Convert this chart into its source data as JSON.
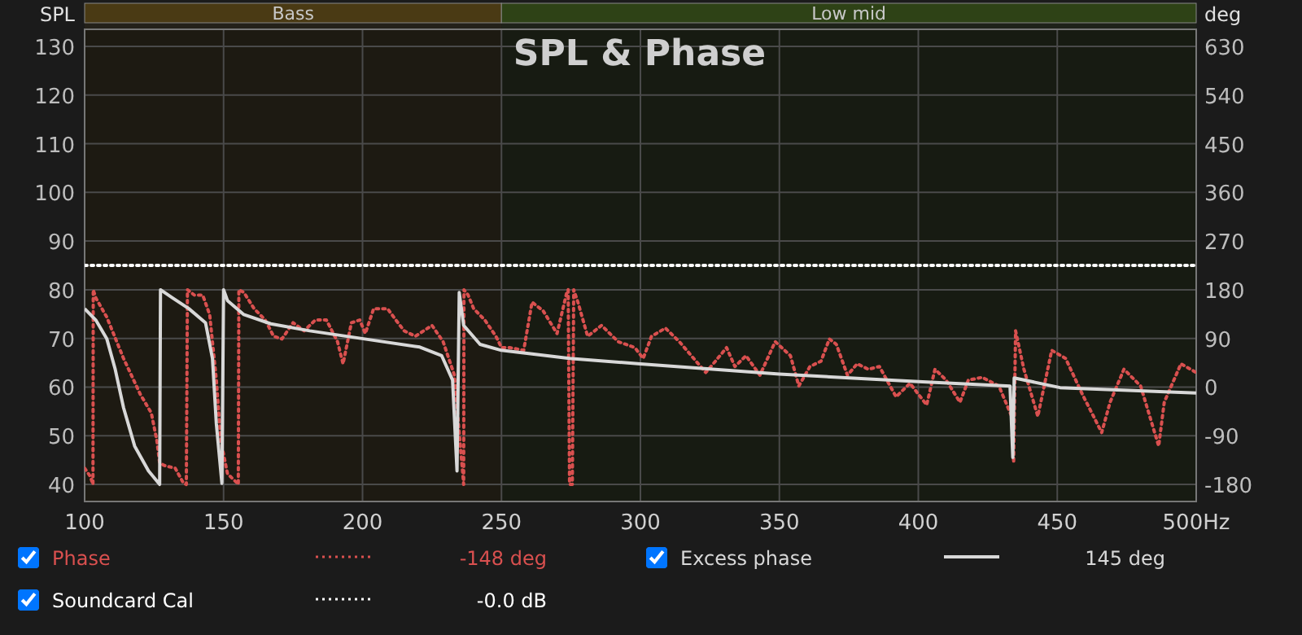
{
  "chart_data": {
    "type": "line",
    "title": "SPL & Phase",
    "ylabel": "SPL",
    "y2label": "deg",
    "xlim": [
      100,
      500
    ],
    "xticks": [
      100,
      150,
      200,
      250,
      300,
      350,
      400,
      450,
      {
        "value": 500,
        "label": "500Hz"
      }
    ],
    "ylim": [
      36.5,
      133.5
    ],
    "yticks": [
      40,
      50,
      60,
      70,
      80,
      90,
      100,
      110,
      120,
      130
    ],
    "y2lim": [
      -211.5,
      661.5
    ],
    "y2ticks": [
      -180,
      -90,
      0,
      90,
      180,
      270,
      360,
      450,
      540,
      630
    ],
    "grid": true,
    "legend": "bottom",
    "bands": [
      {
        "axis": "x",
        "from": 100,
        "to": 250,
        "label": "Bass",
        "color": "#4a3a14"
      },
      {
        "axis": "x",
        "from": 250,
        "to": 500,
        "label": "Low mid",
        "color": "#2e4216"
      }
    ],
    "annotations": [
      "-148 deg",
      "145 deg",
      "-0.0 dB"
    ],
    "series": [
      {
        "name": "Phase",
        "color": "#d9504f",
        "axis": "y2",
        "line_style": "dotted",
        "x": [
          100,
          102,
          103,
          103.1,
          104,
          108,
          114,
          120,
          124,
          126,
          127,
          128.7,
          132.6,
          135.6,
          136.6,
          137,
          139.5,
          142.5,
          145,
          147.4,
          149,
          151.4,
          155,
          155.3,
          155.5,
          157.3,
          161,
          165,
          168,
          171,
          175,
          179,
          183,
          187,
          191,
          193,
          196,
          199,
          201,
          204,
          209,
          212,
          215,
          219,
          222,
          225,
          229,
          233,
          236.4,
          236.5,
          238,
          240,
          244,
          248,
          250,
          253,
          258,
          261,
          265,
          270,
          273.5,
          274,
          274.5,
          275.5,
          276,
          277.5,
          281,
          286,
          292,
          298,
          301,
          304,
          309,
          314,
          320,
          323.5,
          327,
          331,
          334,
          338,
          343,
          348.5,
          354,
          357,
          361,
          365,
          368,
          370.5,
          374.5,
          378,
          382,
          386,
          392,
          397,
          403,
          406,
          410,
          415,
          418,
          423,
          429,
          434,
          434.3,
          435,
          438,
          443,
          448,
          453,
          459,
          466,
          469,
          474,
          480,
          486.5,
          488.5,
          494.5,
          500
        ],
        "values": [
          -150,
          -165,
          -180,
          180,
          165,
          129,
          53,
          -13,
          -48,
          -99,
          -140,
          -145,
          -150,
          -178,
          -180,
          180,
          170,
          170,
          134,
          13,
          -99,
          -160,
          -178,
          -180,
          180,
          175,
          145,
          124,
          94,
          89,
          119,
          104,
          124,
          124,
          84,
          43,
          119,
          124,
          99,
          145,
          145,
          124,
          104,
          94,
          104,
          114,
          84,
          23,
          -180,
          180,
          170,
          145,
          124,
          94,
          73,
          73,
          68,
          157,
          141,
          99,
          175,
          180,
          -180,
          -180,
          180,
          157,
          94,
          114,
          84,
          73,
          53,
          94,
          109,
          84,
          48,
          27,
          48,
          73,
          38,
          58,
          22,
          84,
          58,
          2,
          38,
          48,
          89,
          79,
          22,
          43,
          33,
          38,
          -18,
          7,
          -33,
          33,
          13,
          -28,
          13,
          18,
          2,
          -59,
          -140,
          104,
          33,
          -54,
          68,
          53,
          -13,
          -84,
          -28,
          33,
          2,
          -109,
          -28,
          43,
          27
        ]
      },
      {
        "name": "Excess phase",
        "color": "#d8d8d8",
        "axis": "y2",
        "line_style": "solid",
        "x": [
          100,
          104,
          108,
          111,
          114,
          118,
          123,
          127,
          127.3,
          131.6,
          137.5,
          143.5,
          146,
          147.4,
          149.4,
          150,
          151.4,
          157.3,
          167,
          181,
          200.8,
          220.6,
          228.5,
          232.4,
          234,
          234.8,
          236.4,
          242.3,
          250,
          274.5,
          300,
          350,
          400,
          433,
          434,
          434.5,
          451,
          500
        ],
        "values": [
          145,
          124,
          89,
          33,
          -38,
          -109,
          -155,
          -180,
          180,
          165,
          145,
          119,
          53,
          -68,
          -178,
          180,
          160,
          134,
          117,
          104,
          89,
          74,
          58,
          13,
          -155,
          175,
          114,
          79,
          68,
          53,
          43,
          24,
          10,
          2,
          -130,
          17,
          -1,
          -11
        ]
      },
      {
        "name": "Soundcard Cal",
        "color": "#ffffff",
        "line_style": "dotted",
        "x": [
          100,
          500
        ],
        "values": [
          85,
          85
        ]
      }
    ]
  }
}
